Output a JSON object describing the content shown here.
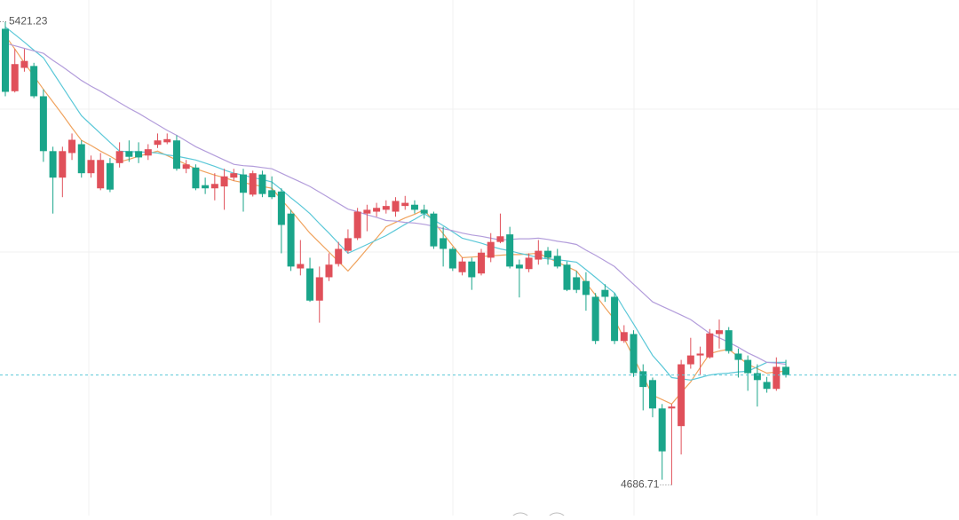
{
  "chart_data": {
    "type": "candlestick",
    "up_color": "#e0505a",
    "down_color": "#1aa58a",
    "ylim": [
      4650,
      5450
    ],
    "candles": {
      "open": [
        5410,
        5311,
        5348,
        5351,
        5303,
        5216,
        5174,
        5213,
        5227,
        5181,
        5157,
        5197,
        5197,
        5216,
        5216,
        5209,
        5226,
        5230,
        5233,
        5188,
        5190,
        5162,
        5157,
        5160,
        5174,
        5179,
        5147,
        5179,
        5154,
        5152,
        5117,
        5030,
        5030,
        4979,
        5016,
        5037,
        5058,
        5078,
        5117,
        5120,
        5123,
        5120,
        5129,
        5131,
        5123,
        5117,
        5078,
        5061,
        5024,
        5041,
        5022,
        5047,
        5072,
        5084,
        5036,
        5029,
        5044,
        5058,
        5050,
        5036,
        5016,
        5010,
        4985,
        4996,
        4985,
        4915,
        4926,
        4867,
        4853,
        4808,
        4808,
        4780,
        4878,
        4892,
        4889,
        4926,
        4932,
        4895,
        4885,
        4864,
        4850,
        4839,
        4874
      ],
      "high": [
        5421.23,
        5378,
        5378,
        5356,
        5314,
        5223,
        5223,
        5244,
        5233,
        5209,
        5213,
        5205,
        5230,
        5233,
        5230,
        5227,
        5244,
        5244,
        5241,
        5202,
        5195,
        5174,
        5181,
        5188,
        5188,
        5188,
        5185,
        5185,
        5176,
        5157,
        5123,
        5075,
        5047,
        5033,
        5054,
        5072,
        5092,
        5126,
        5131,
        5134,
        5138,
        5143,
        5145,
        5138,
        5131,
        5120,
        5096,
        5064,
        5047,
        5047,
        5061,
        5086,
        5117,
        5096,
        5044,
        5054,
        5075,
        5064,
        5061,
        5041,
        5026,
        5024,
        4991,
        5005,
        4991,
        4940,
        4932,
        4878,
        4857,
        4815,
        4815,
        4885,
        4920,
        4906,
        4934,
        4949,
        4937,
        4903,
        4892,
        4878,
        4858,
        4889,
        4885
      ],
      "low": [
        5303,
        5309,
        5342,
        5300,
        5199,
        5117,
        5143,
        5202,
        5174,
        5174,
        5154,
        5151,
        5190,
        5199,
        5197,
        5202,
        5221,
        5227,
        5185,
        5181,
        5154,
        5148,
        5138,
        5123,
        5169,
        5120,
        5144,
        5143,
        5140,
        5054,
        5026,
        5019,
        4977,
        4944,
        5010,
        5033,
        5054,
        5075,
        5089,
        5112,
        5117,
        5112,
        5123,
        5117,
        5109,
        5061,
        5033,
        5026,
        5019,
        4996,
        5019,
        5040,
        5070,
        5030,
        4984,
        5024,
        5036,
        5036,
        5030,
        4994,
        4991,
        4963,
        4910,
        4977,
        4910,
        4912,
        4858,
        4805,
        4794,
        4695,
        4686.71,
        4735,
        4871,
        4861,
        4887,
        4903,
        4895,
        4857,
        4836,
        4811,
        4833,
        4836,
        4857
      ],
      "close": [
        5310,
        5354,
        5359,
        5303,
        5216,
        5174,
        5216,
        5234,
        5181,
        5202,
        5202,
        5155,
        5216,
        5207,
        5206,
        5219,
        5233,
        5235,
        5188,
        5195,
        5157,
        5157,
        5164,
        5176,
        5181,
        5150,
        5181,
        5148,
        5143,
        5099,
        5033,
        5037,
        4979,
        5016,
        5036,
        5061,
        5078,
        5120,
        5123,
        5126,
        5129,
        5137,
        5134,
        5123,
        5117,
        5065,
        5061,
        5030,
        5041,
        5016,
        5055,
        5072,
        5081,
        5033,
        5030,
        5047,
        5058,
        5047,
        5033,
        4996,
        4996,
        4988,
        4915,
        4985,
        4915,
        4929,
        4864,
        4842,
        4808,
        4740,
        4811,
        4878,
        4892,
        4895,
        4927,
        4932,
        4899,
        4885,
        4864,
        4853,
        4839,
        4874,
        4861
      ]
    },
    "lines": [
      {
        "color": "#f0a35e",
        "values": [
          5399,
          5378,
          5356,
          5335,
          5314,
          5294,
          5274,
          5253,
          5233,
          5225,
          5216,
          5208,
          5199,
          5203,
          5208,
          5212,
          5216,
          5209,
          5202,
          5195,
          5188,
          5183,
          5178,
          5174,
          5169,
          5166,
          5163,
          5160,
          5157,
          5139,
          5122,
          5104,
          5086,
          5071,
          5056,
          5041,
          5026,
          5043,
          5061,
          5078,
          5096,
          5103,
          5110,
          5116,
          5123,
          5104,
          5085,
          5066,
          5047,
          5048,
          5049,
          5050,
          5051,
          5052,
          5052,
          5053,
          5054,
          5047,
          5040,
          5033,
          5026,
          5007,
          4988,
          4968,
          4949,
          4919,
          4889,
          4859,
          4829,
          4822,
          4815,
          4833,
          4850,
          4873,
          4895,
          4899,
          4902,
          4890,
          4878,
          4871,
          4864,
          4866,
          4867
        ]
      },
      {
        "color": "#5bc8d8",
        "values": [
          5413,
          5401,
          5389,
          5376,
          5364,
          5341,
          5318,
          5295,
          5272,
          5258,
          5244,
          5230,
          5216,
          5215,
          5215,
          5214,
          5213,
          5210,
          5208,
          5205,
          5202,
          5197,
          5192,
          5186,
          5181,
          5178,
          5174,
          5171,
          5167,
          5155,
          5142,
          5130,
          5117,
          5101,
          5086,
          5070,
          5054,
          5061,
          5068,
          5075,
          5082,
          5091,
          5100,
          5108,
          5117,
          5107,
          5098,
          5088,
          5078,
          5074,
          5070,
          5065,
          5061,
          5058,
          5054,
          5051,
          5047,
          5045,
          5044,
          5042,
          5040,
          5028,
          5016,
          5003,
          4991,
          4966,
          4942,
          4917,
          4892,
          4875,
          4857,
          4855,
          4853,
          4857,
          4861,
          4863,
          4864,
          4866,
          4867,
          4874,
          4881,
          4881,
          4881
        ]
      },
      {
        "color": "#b39ddb",
        "values": [
          5387,
          5383,
          5379,
          5375,
          5371,
          5360,
          5350,
          5339,
          5328,
          5319,
          5311,
          5302,
          5293,
          5284,
          5276,
          5267,
          5258,
          5249,
          5241,
          5232,
          5223,
          5216,
          5209,
          5202,
          5195,
          5193,
          5192,
          5190,
          5188,
          5181,
          5174,
          5167,
          5160,
          5151,
          5142,
          5133,
          5124,
          5120,
          5115,
          5111,
          5106,
          5105,
          5103,
          5102,
          5100,
          5097,
          5093,
          5090,
          5086,
          5083,
          5081,
          5078,
          5075,
          5076,
          5077,
          5077,
          5078,
          5076,
          5073,
          5071,
          5068,
          5059,
          5051,
          5042,
          5033,
          5019,
          5005,
          4991,
          4977,
          4970,
          4963,
          4956,
          4949,
          4938,
          4927,
          4920,
          4913,
          4905,
          4896,
          4889,
          4881,
          4880,
          4878
        ]
      }
    ],
    "last_price_color": "#5bc8d8"
  }
}
